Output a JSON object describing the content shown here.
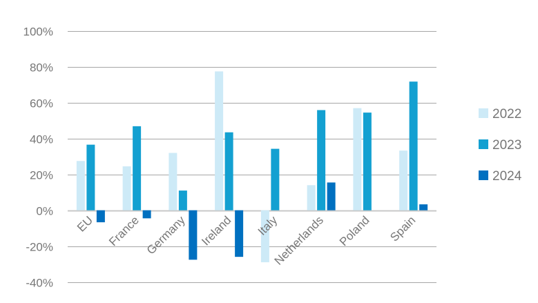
{
  "chart_data": {
    "type": "bar",
    "title": "",
    "xlabel": "",
    "ylabel": "",
    "categories": [
      "EU",
      "France",
      "Germany",
      "Ireland",
      "Italy",
      "Netherlands",
      "Poland",
      "Spain"
    ],
    "series": [
      {
        "name": "2022",
        "color": "#cdeaf7",
        "values": [
          27.5,
          24.5,
          32,
          77.5,
          -29,
          14,
          57,
          33.3
        ]
      },
      {
        "name": "2023",
        "color": "#13a0d1",
        "values": [
          36.6,
          46.9,
          11,
          43.5,
          34.3,
          55.9,
          54.5,
          71.8
        ]
      },
      {
        "name": "2024",
        "color": "#0070c0",
        "values": [
          -6.7,
          -4.5,
          -27.6,
          -26,
          null,
          15.5,
          null,
          3.3
        ]
      }
    ],
    "ylim": [
      -40,
      100
    ],
    "yticks": [
      "100%",
      "80%",
      "60%",
      "40%",
      "20%",
      "0%",
      "-20%",
      "-40%"
    ],
    "ytick_values": [
      100,
      80,
      60,
      40,
      20,
      0,
      -20,
      -40
    ],
    "grid": true,
    "legend": "right",
    "gridline_color": "#a6a6a6",
    "text_color": "#767676"
  }
}
